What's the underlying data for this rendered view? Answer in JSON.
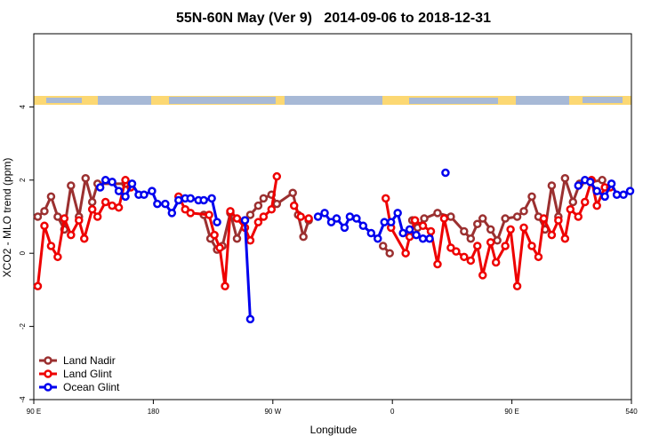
{
  "chart_data": {
    "type": "line",
    "title": "55N-60N May (Ver 9)   2014-09-06 to 2018-12-31",
    "x_label": "Longitude",
    "y_label": "XCO2 - MLO trend (ppm)",
    "xlim": [
      90,
      540
    ],
    "ylim": [
      -4,
      6
    ],
    "xticks": [
      {
        "value": 90,
        "label": "90 E"
      },
      180,
      {
        "value": 270,
        "label": "90 W"
      },
      {
        "value": 360,
        "label": "0"
      },
      {
        "value": 450,
        "label": "90 E"
      },
      540
    ],
    "yticks": [
      -4,
      -2,
      0,
      2,
      4
    ],
    "legend": "bottom-left",
    "series": [
      {
        "name": "Land Nadir",
        "color": "#9b3030",
        "x": [
          93,
          98,
          103,
          108,
          113,
          118,
          124,
          129,
          134,
          138,
          159,
          null,
          218,
          223,
          228,
          232,
          238,
          243,
          249,
          253,
          259,
          263,
          269,
          273,
          285,
          289,
          293,
          297,
          null,
          353,
          358,
          null,
          375,
          379,
          384,
          394,
          404,
          414,
          419,
          424,
          428,
          434,
          439,
          445,
          454,
          459,
          465,
          470,
          475,
          480,
          485,
          490,
          496,
          501,
          518
        ],
        "values": [
          1.0,
          1.15,
          1.55,
          1.0,
          0.65,
          1.85,
          1.0,
          2.05,
          1.4,
          1.9,
          1.9,
          null,
          1.05,
          0.4,
          0.1,
          0.2,
          1.1,
          0.4,
          0.9,
          1.05,
          1.3,
          1.5,
          1.6,
          1.35,
          1.65,
          1.05,
          0.45,
          0.9,
          null,
          0.2,
          0.0,
          null,
          0.9,
          0.7,
          0.95,
          1.1,
          1.0,
          0.6,
          0.4,
          0.8,
          0.95,
          0.65,
          0.35,
          0.95,
          1.0,
          1.15,
          1.55,
          1.0,
          0.65,
          1.85,
          1.0,
          2.05,
          1.4,
          1.9,
          2.0
        ]
      },
      {
        "name": "Land Glint",
        "color": "#ee0000",
        "x": [
          93,
          98,
          103,
          108,
          113,
          118,
          124,
          128,
          134,
          138,
          144,
          149,
          154,
          159,
          163,
          null,
          199,
          204,
          208,
          222,
          226,
          230,
          234,
          238,
          243,
          249,
          253,
          259,
          263,
          269,
          273,
          null,
          286,
          291,
          297,
          null,
          355,
          359,
          370,
          373,
          377,
          383,
          389,
          394,
          399,
          404,
          408,
          414,
          419,
          424,
          428,
          434,
          438,
          445,
          449,
          454,
          459,
          465,
          470,
          474,
          480,
          485,
          490,
          494,
          500,
          505,
          510,
          514,
          520,
          524
        ],
        "values": [
          -0.9,
          0.75,
          0.2,
          -0.1,
          0.95,
          0.5,
          0.9,
          0.4,
          1.2,
          1.0,
          1.4,
          1.3,
          1.25,
          2.0,
          1.8,
          null,
          1.55,
          1.2,
          1.1,
          1.05,
          0.5,
          0.15,
          -0.9,
          1.15,
          0.95,
          0.7,
          0.35,
          0.85,
          1.0,
          1.2,
          2.1,
          null,
          1.3,
          1.0,
          0.95,
          null,
          1.5,
          0.7,
          0.0,
          0.45,
          0.9,
          0.75,
          0.6,
          -0.3,
          0.95,
          0.15,
          0.05,
          -0.1,
          -0.2,
          0.2,
          -0.6,
          0.3,
          -0.25,
          0.2,
          0.65,
          -0.9,
          0.7,
          0.2,
          -0.1,
          0.95,
          0.5,
          0.9,
          0.4,
          1.2,
          1.0,
          1.4,
          2.0,
          1.3,
          1.8,
          1.8
        ]
      },
      {
        "name": "Ocean Glint",
        "color": "#0000ee",
        "x": [
          140,
          144,
          149,
          154,
          159,
          164,
          169,
          173,
          179,
          183,
          189,
          194,
          199,
          204,
          208,
          214,
          218,
          224,
          228,
          null,
          249,
          253,
          null,
          304,
          309,
          314,
          318,
          324,
          328,
          333,
          338,
          344,
          349,
          354,
          359,
          364,
          368,
          373,
          378,
          383,
          388,
          null,
          400,
          null,
          500,
          505,
          509,
          514,
          520,
          525,
          529,
          534,
          539
        ],
        "values": [
          1.8,
          2.0,
          1.95,
          1.7,
          1.55,
          1.9,
          1.6,
          1.6,
          1.7,
          1.35,
          1.35,
          1.1,
          1.45,
          1.5,
          1.5,
          1.45,
          1.45,
          1.5,
          0.85,
          null,
          0.9,
          -1.8,
          null,
          1.0,
          1.1,
          0.85,
          0.95,
          0.7,
          1.0,
          0.95,
          0.75,
          0.55,
          0.4,
          0.85,
          0.85,
          1.1,
          0.55,
          0.65,
          0.5,
          0.4,
          0.4,
          null,
          2.2,
          null,
          1.85,
          2.0,
          1.95,
          1.7,
          1.55,
          1.9,
          1.6,
          1.6,
          1.7
        ]
      }
    ]
  }
}
